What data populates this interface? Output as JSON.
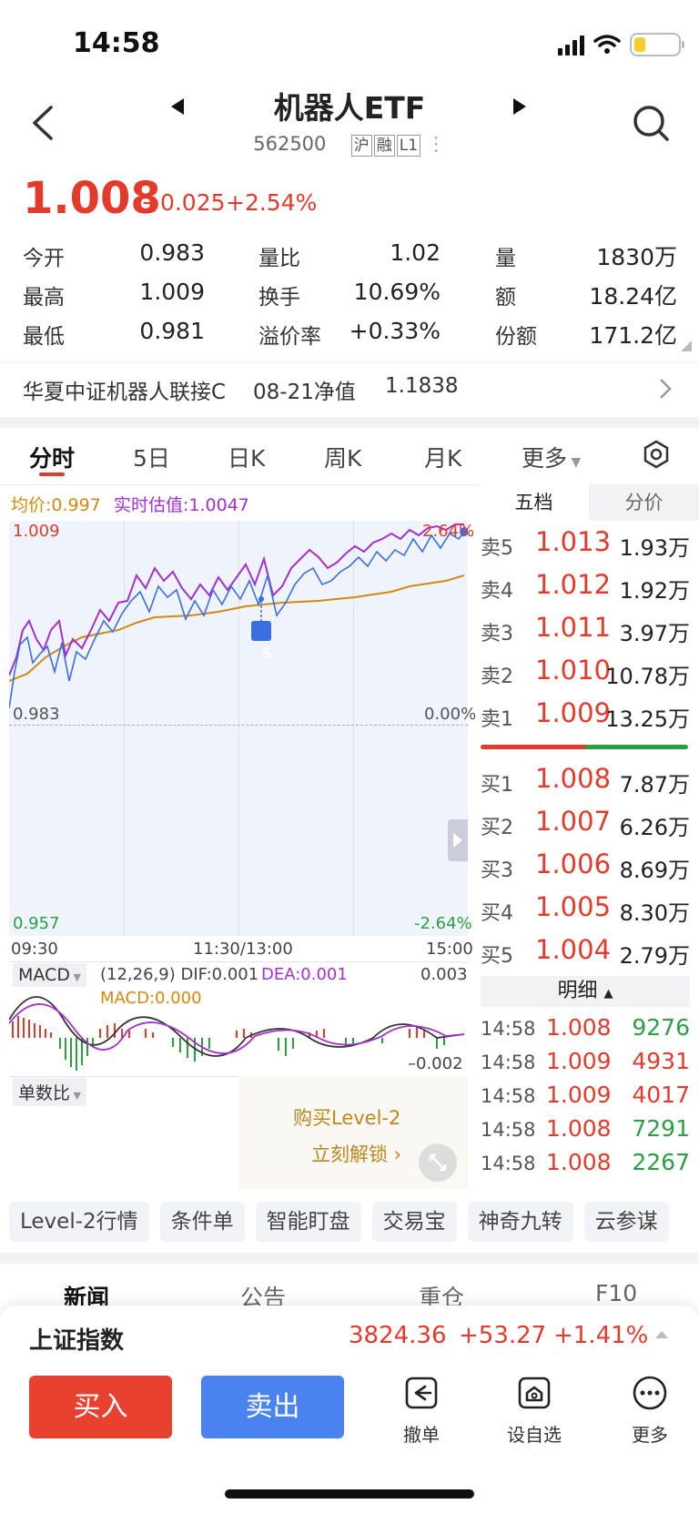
{
  "status": {
    "time": "14:58"
  },
  "header": {
    "title": "机器人ETF",
    "code": "562500",
    "tags": [
      "沪",
      "融",
      "L1"
    ]
  },
  "quote": {
    "price": "1.008",
    "change": "+0.025",
    "change_pct": "+2.54%"
  },
  "stats": {
    "open_label": "今开",
    "open": "0.983",
    "vol_ratio_label": "量比",
    "vol_ratio": "1.02",
    "volume_label": "量",
    "volume": "1830万",
    "high_label": "最高",
    "high": "1.009",
    "turnover_label": "换手",
    "turnover": "10.69%",
    "amount_label": "额",
    "amount": "18.24亿",
    "low_label": "最低",
    "low": "0.981",
    "premium_label": "溢价率",
    "premium": "+0.33%",
    "shares_label": "份额",
    "shares": "171.2亿"
  },
  "fund": {
    "name": "华夏中证机器人联接C",
    "nav_label": "08-21净值",
    "nav": "1.1838"
  },
  "tabs": [
    "分时",
    "5日",
    "日K",
    "周K",
    "月K",
    "更多"
  ],
  "chart": {
    "avg_label": "均价:0.997",
    "est_label": "实时估值:1.0047",
    "top_price": "1.009",
    "top_pct": "2.64%",
    "mid_price": "0.983",
    "mid_pct": "0.00%",
    "bottom_price": "0.957",
    "bottom_pct": "-2.64%",
    "time_start": "09:30",
    "time_mid": "11:30/13:00",
    "time_end": "15:00",
    "signal": "S",
    "macd_label": "MACD",
    "macd_params": "(12,26,9) DIF:0.001",
    "dea": "DEA:0.001",
    "macd_val": "MACD:0.000",
    "macd_top": "0.003",
    "macd_bottom": "–0.002",
    "indicator2": "单数比",
    "promo_line1": "购买Level-2",
    "promo_line2": "立刻解锁"
  },
  "orderbook": {
    "tab_active": "五档",
    "tab_other": "分价",
    "asks": [
      {
        "label": "卖5",
        "price": "1.013",
        "vol": "1.93万"
      },
      {
        "label": "卖4",
        "price": "1.012",
        "vol": "1.92万"
      },
      {
        "label": "卖3",
        "price": "1.011",
        "vol": "3.97万"
      },
      {
        "label": "卖2",
        "price": "1.010",
        "vol": "10.78万"
      },
      {
        "label": "卖1",
        "price": "1.009",
        "vol": "13.25万"
      }
    ],
    "bids": [
      {
        "label": "买1",
        "price": "1.008",
        "vol": "7.87万"
      },
      {
        "label": "买2",
        "price": "1.007",
        "vol": "6.26万"
      },
      {
        "label": "买3",
        "price": "1.006",
        "vol": "8.69万"
      },
      {
        "label": "买4",
        "price": "1.005",
        "vol": "8.30万"
      },
      {
        "label": "买5",
        "price": "1.004",
        "vol": "2.79万"
      }
    ],
    "detail_label": "明细",
    "details": [
      {
        "time": "14:58",
        "price": "1.008",
        "vol": "9276",
        "color": "#2aa043"
      },
      {
        "time": "14:58",
        "price": "1.009",
        "vol": "4931",
        "color": "#e33a2c"
      },
      {
        "time": "14:58",
        "price": "1.009",
        "vol": "4017",
        "color": "#e33a2c"
      },
      {
        "time": "14:58",
        "price": "1.008",
        "vol": "7291",
        "color": "#2aa043"
      },
      {
        "time": "14:58",
        "price": "1.008",
        "vol": "2267",
        "color": "#2aa043"
      }
    ]
  },
  "features": [
    "Level-2行情",
    "条件单",
    "智能盯盘",
    "交易宝",
    "神奇九转",
    "云参谋"
  ],
  "news_tabs": [
    "新闻",
    "公告",
    "重仓",
    "F10"
  ],
  "index_bar": {
    "name": "上证指数",
    "value": "3824.36",
    "change": "+53.27",
    "pct": "+1.41%"
  },
  "actions": {
    "buy": "买入",
    "sell": "卖出",
    "cancel": "撤单",
    "watch": "设自选",
    "more": "更多"
  },
  "colors": {
    "up": "#e33a2c",
    "down": "#2aa043",
    "buy_btn": "#e8412f",
    "sell_btn": "#4a82f0"
  }
}
